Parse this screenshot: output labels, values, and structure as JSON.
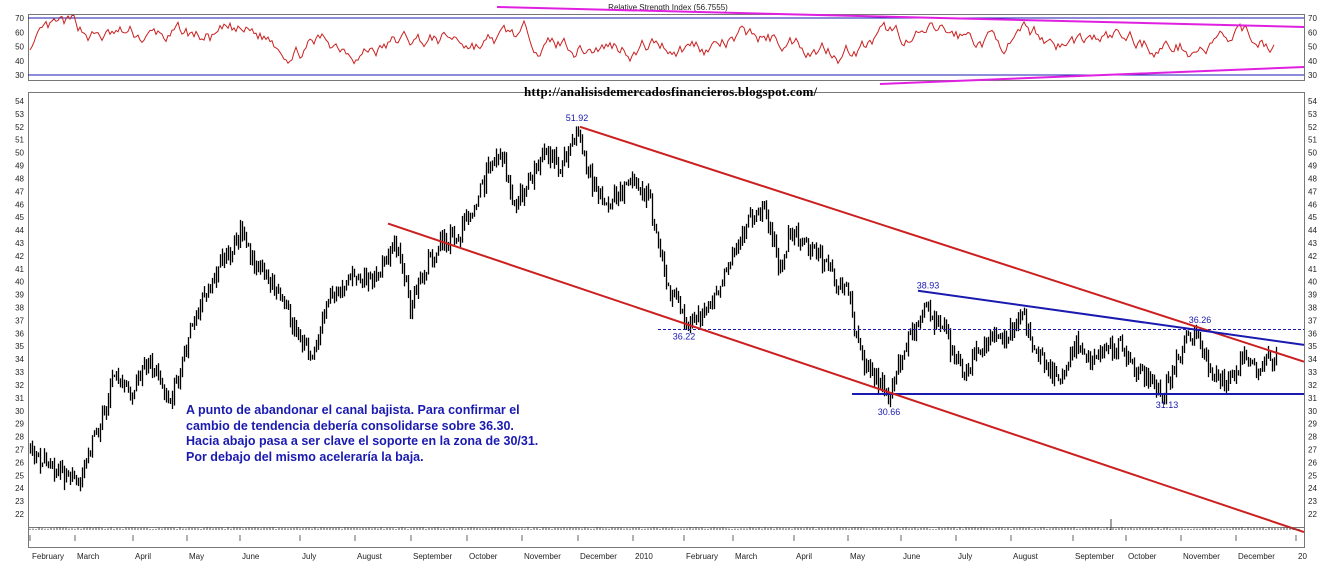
{
  "url_text": "http://analisisdemercadosfinancieros.blogspot.com/",
  "note_lines": [
    "A punto de abandonar el canal bajista. Para confirmar el",
    "cambio de tendencia debería consolidarse sobre 36.30.",
    "Hacia abajo pasa a ser clave el soporte en la zona de 30/31.",
    "Por debajo del mismo aceleraría la baja."
  ],
  "colors": {
    "rsi_line": "#cc1f1f",
    "rsi_channel": "#e020e0",
    "bands": "#1a1ab0",
    "price": "#000000",
    "channel": "#cc1f1f",
    "resistance": "#1a1ab0"
  },
  "chart_data": [
    {
      "type": "line",
      "title": "Relative Strength Index (56.7555)",
      "y_ticks": [
        30,
        40,
        50,
        60,
        70
      ],
      "ylim": [
        30,
        70
      ],
      "reference_levels": [
        70,
        30
      ],
      "grid": false
    },
    {
      "type": "ohlc",
      "ylim": [
        22,
        54
      ],
      "y_ticks": [
        22,
        23,
        24,
        25,
        26,
        27,
        28,
        29,
        30,
        31,
        32,
        33,
        34,
        35,
        36,
        37,
        38,
        39,
        40,
        41,
        42,
        43,
        44,
        45,
        46,
        47,
        48,
        49,
        50,
        51,
        52,
        53,
        54
      ],
      "x_tick_labels": [
        "February",
        "March",
        "April",
        "May",
        "June",
        "July",
        "August",
        "September",
        "October",
        "November",
        "December",
        "2010",
        "February",
        "March",
        "April",
        "May",
        "June",
        "July",
        "August",
        "September",
        "October",
        "November",
        "December",
        "20"
      ],
      "key_points": [
        {
          "x": "2009-12",
          "y": 51.92,
          "label": "51.92"
        },
        {
          "x": "2010-01",
          "y": 36.22,
          "label": "36.22"
        },
        {
          "x": "2010-06",
          "y": 38.93,
          "label": "38.93"
        },
        {
          "x": "2010-05",
          "y": 30.66,
          "label": "30.66"
        },
        {
          "x": "2010-10",
          "y": 31.13,
          "label": "31.13"
        },
        {
          "x": "2010-11",
          "y": 36.26,
          "label": "36.26"
        }
      ],
      "support_level": 31.3,
      "dashed_level": 36.3,
      "trend_lines": [
        {
          "name": "channel-upper",
          "points": [
            [
              "2009-12",
              52.0
            ],
            [
              "2011-01",
              33.8
            ]
          ]
        },
        {
          "name": "channel-lower",
          "points": [
            [
              "2009-08",
              44.5
            ],
            [
              "2011-01",
              20.6
            ]
          ]
        },
        {
          "name": "resistance",
          "points": [
            [
              "2010-06",
              39.3
            ],
            [
              "2011-01",
              35.1
            ]
          ]
        }
      ],
      "grid": false
    }
  ]
}
